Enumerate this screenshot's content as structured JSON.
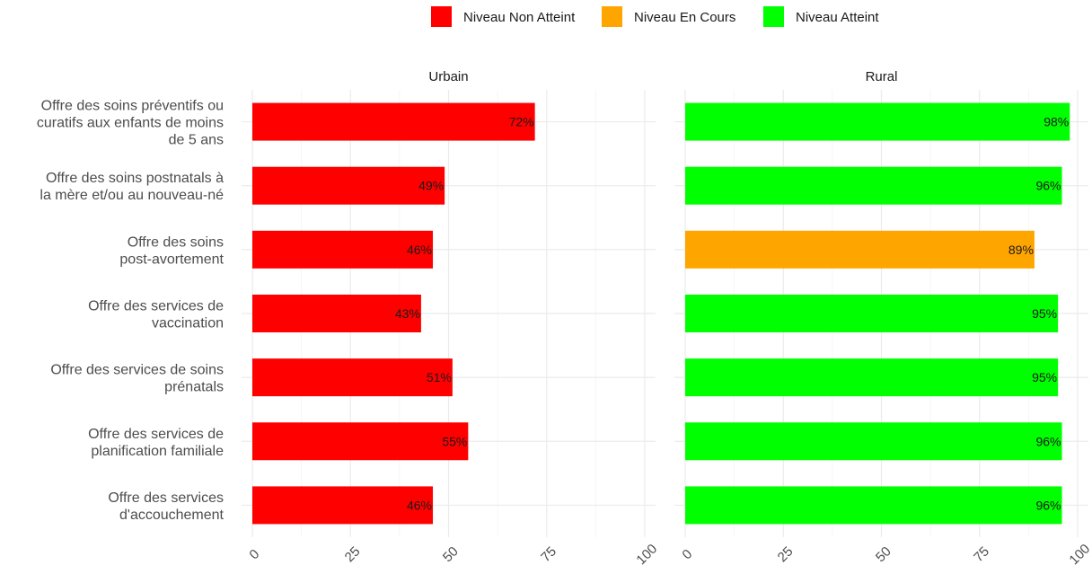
{
  "chart_data": {
    "type": "bar",
    "orientation": "horizontal",
    "legend": {
      "placement": "top",
      "entries": [
        {
          "label": "Niveau Non Atteint",
          "color": "#ff0000"
        },
        {
          "label": "Niveau En Cours",
          "color": "#ffa500"
        },
        {
          "label": "Niveau Atteint",
          "color": "#00ff00"
        }
      ]
    },
    "categories": [
      [
        "Offre des soins préventifs ou",
        "curatifs aux enfants de moins",
        "de 5 ans"
      ],
      [
        "Offre des soins postnatals à",
        "la mère et/ou au nouveau-né"
      ],
      [
        "Offre des soins",
        "post-avortement"
      ],
      [
        "Offre des services de",
        "vaccination"
      ],
      [
        "Offre des services de soins",
        "prénatals"
      ],
      [
        "Offre des services de",
        "planification familiale"
      ],
      [
        "Offre des services",
        "d'accouchement"
      ]
    ],
    "xlim": [
      0,
      100
    ],
    "xticks": [
      "0",
      "25",
      "50",
      "75",
      "100"
    ],
    "grid": true,
    "panels": [
      {
        "title": "Urbain",
        "values": [
          72,
          49,
          46,
          43,
          51,
          55,
          46
        ],
        "labels": [
          "72%",
          "49%",
          "46%",
          "43%",
          "51%",
          "55%",
          "46%"
        ],
        "levels": [
          "Niveau Non Atteint",
          "Niveau Non Atteint",
          "Niveau Non Atteint",
          "Niveau Non Atteint",
          "Niveau Non Atteint",
          "Niveau Non Atteint",
          "Niveau Non Atteint"
        ]
      },
      {
        "title": "Rural",
        "values": [
          98,
          96,
          89,
          95,
          95,
          96,
          96
        ],
        "labels": [
          "98%",
          "96%",
          "89%",
          "95%",
          "95%",
          "96%",
          "96%"
        ],
        "levels": [
          "Niveau Atteint",
          "Niveau Atteint",
          "Niveau En Cours",
          "Niveau Atteint",
          "Niveau Atteint",
          "Niveau Atteint",
          "Niveau Atteint"
        ]
      }
    ]
  }
}
